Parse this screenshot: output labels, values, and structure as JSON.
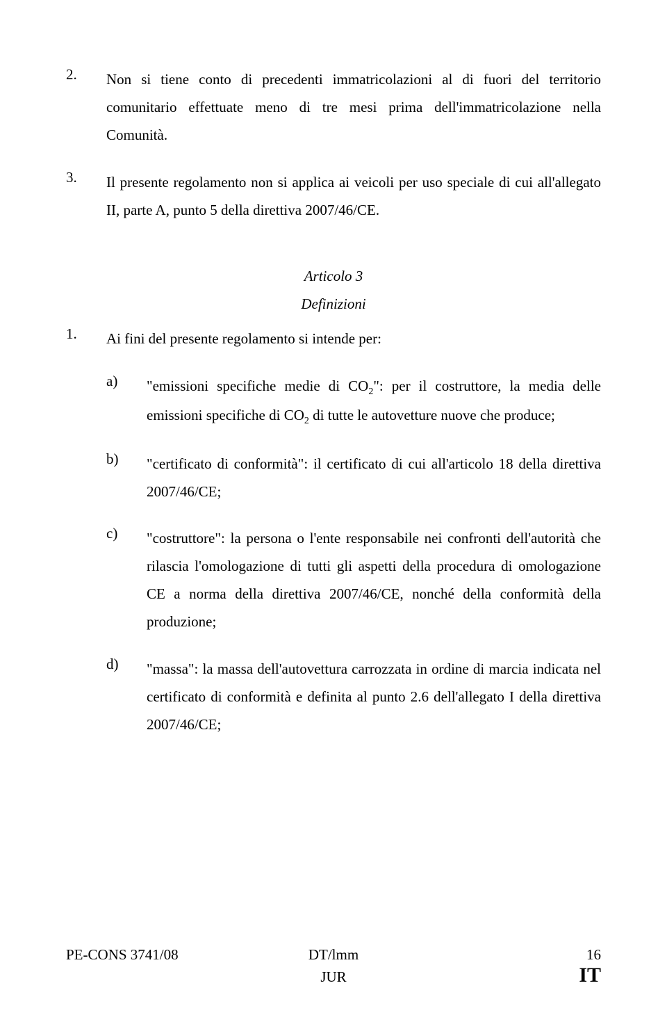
{
  "items": [
    {
      "marker": "2.",
      "text": "Non si tiene conto di precedenti immatricolazioni al di fuori del territorio comunitario effettuate meno di tre mesi prima dell'immatricolazione nella Comunità."
    },
    {
      "marker": "3.",
      "text": "Il presente regolamento non si applica ai veicoli per uso speciale di cui all'allegato II, parte A, punto 5 della direttiva 2007/46/CE."
    }
  ],
  "article": {
    "title": "Articolo 3",
    "subtitle": "Definizioni"
  },
  "intro": {
    "marker": "1.",
    "text": "Ai fini del presente regolamento si intende per:"
  },
  "defs": [
    {
      "letter": "a)",
      "pre": "\"emissioni specifiche medie di CO",
      "sub1": "2",
      "mid": "\": per il costruttore, la media delle emissioni specifiche di CO",
      "sub2": "2",
      "post": " di tutte le autovetture nuove che produce;"
    },
    {
      "letter": "b)",
      "text": "\"certificato di conformità\": il certificato di cui all'articolo 18 della direttiva 2007/46/CE;"
    },
    {
      "letter": "c)",
      "text": "\"costruttore\": la persona o l'ente responsabile nei confronti dell'autorità che rilascia l'omologazione di tutti gli aspetti della procedura di omologazione CE a norma della direttiva 2007/46/CE, nonché della conformità della produzione;"
    },
    {
      "letter": "d)",
      "text": "\"massa\": la massa dell'autovettura carrozzata in ordine di marcia indicata nel certificato di conformità e definita al punto 2.6 dell'allegato I della direttiva 2007/46/CE;"
    }
  ],
  "footer": {
    "left": "PE-CONS 3741/08",
    "center1": "DT/lmm",
    "center2": "JUR",
    "pagenum": "16",
    "lang": "IT"
  }
}
